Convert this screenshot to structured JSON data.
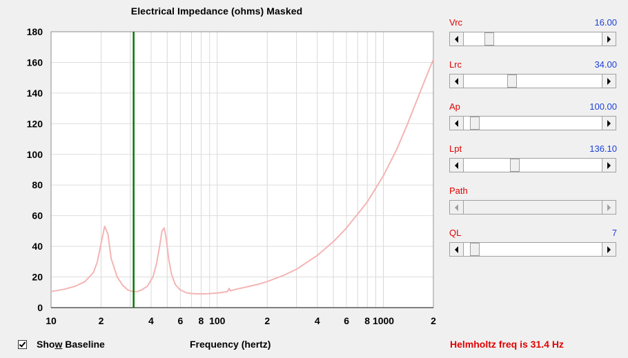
{
  "chart": {
    "title": "Electrical Impedance (ohms)   Masked",
    "x_axis_title": "Frequency (hertz)"
  },
  "chart_data": {
    "type": "line",
    "title": "Electrical Impedance (ohms)   Masked",
    "xlabel": "Frequency (hertz)",
    "ylabel": "",
    "x_scale": "log",
    "xlim": [
      10,
      2000
    ],
    "ylim": [
      0,
      180
    ],
    "grid": true,
    "y_ticks": [
      0,
      20,
      40,
      60,
      80,
      100,
      120,
      140,
      160,
      180
    ],
    "x_tick_labels": [
      {
        "x": 10,
        "label": "10"
      },
      {
        "x": 20,
        "label": "2"
      },
      {
        "x": 40,
        "label": "4"
      },
      {
        "x": 60,
        "label": "6"
      },
      {
        "x": 80,
        "label": "8"
      },
      {
        "x": 100,
        "label": "100"
      },
      {
        "x": 200,
        "label": "2"
      },
      {
        "x": 400,
        "label": "4"
      },
      {
        "x": 600,
        "label": "6"
      },
      {
        "x": 800,
        "label": "8"
      },
      {
        "x": 1000,
        "label": "1000"
      },
      {
        "x": 2000,
        "label": "2"
      }
    ],
    "marker": {
      "x": 31.4,
      "color": "#007800"
    },
    "series": [
      {
        "color": "#f4b4b4",
        "x": [
          10,
          12,
          14,
          16,
          18,
          19,
          20,
          21,
          22,
          23,
          25,
          27,
          29,
          31,
          33,
          35,
          38,
          41,
          43,
          45,
          46.5,
          48,
          49.5,
          51,
          53,
          56,
          60,
          66,
          75,
          85,
          100,
          115,
          118,
          120,
          130,
          150,
          180,
          200,
          250,
          300,
          400,
          500,
          600,
          700,
          800,
          1000,
          1200,
          1400,
          1600,
          1800,
          2000
        ],
        "y": [
          10.5,
          12,
          14,
          17,
          23,
          30,
          42,
          53,
          48,
          32,
          20,
          14.5,
          11.5,
          10.5,
          10.5,
          11.5,
          14,
          20,
          28,
          40,
          50,
          52,
          44,
          32,
          22,
          15,
          11.5,
          9.5,
          9,
          9,
          9.5,
          10.5,
          12.5,
          11,
          12,
          13.5,
          15.5,
          17,
          21,
          25,
          34,
          43,
          52,
          61,
          69,
          86,
          103,
          120,
          136,
          150,
          162
        ]
      }
    ]
  },
  "sliders": [
    {
      "name": "Vrc",
      "value": "16.00",
      "position": 0.16,
      "enabled": true
    },
    {
      "name": "Lrc",
      "value": "34.00",
      "position": 0.34,
      "enabled": true
    },
    {
      "name": "Ap",
      "value": "100.00",
      "position": 0.05,
      "enabled": true
    },
    {
      "name": "Lpt",
      "value": "136.10",
      "position": 0.36,
      "enabled": true
    },
    {
      "name": "Path",
      "value": "",
      "position": null,
      "enabled": false
    },
    {
      "name": "QL",
      "value": "7",
      "position": 0.05,
      "enabled": true
    }
  ],
  "baseline": {
    "label_before": "Sho",
    "label_underlined": "w",
    "label_after": " Baseline",
    "checked": true
  },
  "status": "Helmholtz freq is 31.4 Hz",
  "icons": {
    "left": "arrow-left-icon",
    "right": "arrow-right-icon",
    "check": "checkmark-icon"
  }
}
